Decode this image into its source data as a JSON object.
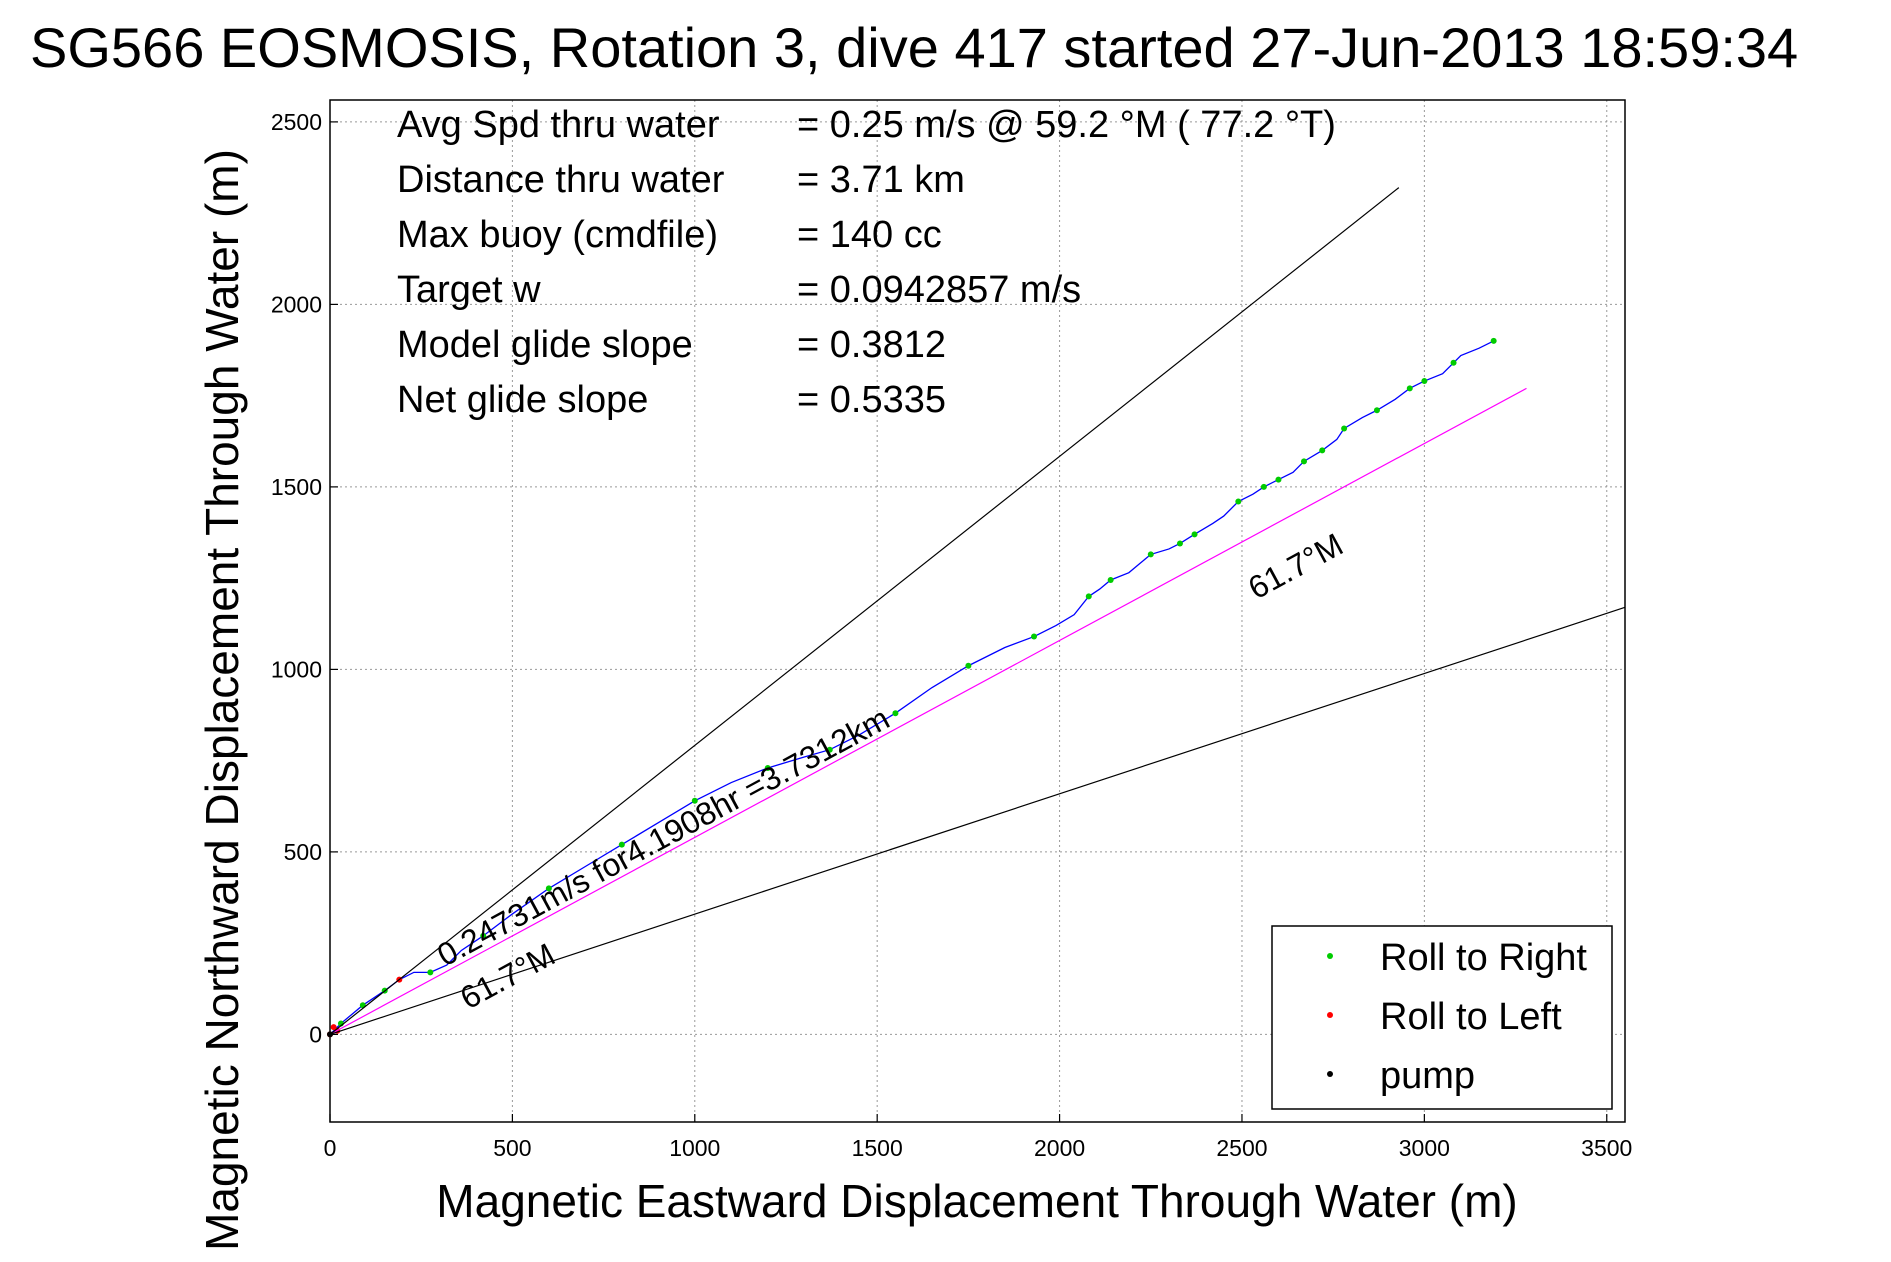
{
  "chart_data": {
    "type": "line",
    "title": "SG566 EOSMOSIS, Rotation 3, dive 417 started 27-Jun-2013 18:59:34",
    "xlabel": "Magnetic Eastward Displacement Through Water (m)",
    "ylabel": "Magnetic Northward Displacement Through Water (m)",
    "xlim": [
      0,
      3550
    ],
    "ylim": [
      -240,
      2560
    ],
    "xticks": [
      0,
      500,
      1000,
      1500,
      2000,
      2500,
      3000,
      3500
    ],
    "yticks": [
      0,
      500,
      1000,
      1500,
      2000,
      2500
    ],
    "grid": true,
    "legend_position": "bottom-right",
    "info_lines": [
      {
        "label": "Avg Spd thru water",
        "value": "=  0.25 m/s @  59.2 °M ( 77.2 °T)"
      },
      {
        "label": "Distance thru water",
        "value": "=  3.71 km"
      },
      {
        "label": "Max buoy (cmdfile)",
        "value": "= 140 cc"
      },
      {
        "label": "Target w",
        "value": "= 0.0942857 m/s"
      },
      {
        "label": "Model glide slope",
        "value": "= 0.3812"
      },
      {
        "label": "Net glide slope",
        "value": "= 0.5335"
      }
    ],
    "annotations": {
      "track_label": "0.24731m/s for4.1908hr =3.7312km",
      "heading_upper": "61.7°M",
      "heading_lower": "61.7°M"
    },
    "series": [
      {
        "name": "track",
        "color": "#0000ff",
        "x": [
          0,
          30,
          60,
          90,
          120,
          150,
          190,
          230,
          275,
          320,
          360,
          420,
          500,
          600,
          700,
          800,
          900,
          1000,
          1100,
          1200,
          1300,
          1370,
          1450,
          1550,
          1650,
          1750,
          1850,
          1930,
          1990,
          2040,
          2080,
          2110,
          2140,
          2190,
          2220,
          2250,
          2300,
          2330,
          2370,
          2420,
          2450,
          2490,
          2530,
          2560,
          2600,
          2640,
          2670,
          2720,
          2760,
          2780,
          2830,
          2870,
          2920,
          2960,
          3000,
          3050,
          3080,
          3100,
          3150,
          3190
        ],
        "y": [
          0,
          30,
          55,
          80,
          100,
          120,
          150,
          170,
          170,
          190,
          230,
          270,
          330,
          400,
          460,
          520,
          580,
          640,
          690,
          730,
          760,
          780,
          820,
          880,
          950,
          1010,
          1060,
          1090,
          1120,
          1150,
          1200,
          1220,
          1245,
          1265,
          1290,
          1315,
          1330,
          1345,
          1370,
          1400,
          1420,
          1460,
          1480,
          1500,
          1520,
          1540,
          1570,
          1600,
          1630,
          1660,
          1690,
          1710,
          1740,
          1770,
          1790,
          1810,
          1840,
          1860,
          1880,
          1900
        ]
      },
      {
        "name": "Roll to Right",
        "color": "#00cc00",
        "x": [
          30,
          90,
          150,
          275,
          420,
          600,
          800,
          1000,
          1200,
          1370,
          1550,
          1750,
          1930,
          2080,
          2140,
          2250,
          2330,
          2370,
          2490,
          2560,
          2600,
          2670,
          2720,
          2780,
          2870,
          2960,
          3000,
          3080,
          3190
        ],
        "y": [
          30,
          80,
          120,
          170,
          270,
          400,
          520,
          640,
          730,
          780,
          880,
          1010,
          1090,
          1200,
          1245,
          1315,
          1345,
          1370,
          1460,
          1500,
          1520,
          1570,
          1600,
          1660,
          1710,
          1770,
          1790,
          1840,
          1900
        ]
      },
      {
        "name": "Roll to Left",
        "color": "#ff0000",
        "x": [
          0,
          10,
          20,
          190
        ],
        "y": [
          0,
          20,
          10,
          150
        ]
      },
      {
        "name": "pump",
        "color": "#000000",
        "x": [
          0
        ],
        "y": [
          0
        ]
      },
      {
        "name": "",
        "color": "#ff00ff",
        "x": [
          0,
          3280
        ],
        "y": [
          0,
          1770
        ]
      },
      {
        "name": "",
        "color": "#000000",
        "x": [
          0,
          2930
        ],
        "y": [
          0,
          2320
        ]
      },
      {
        "name": "",
        "color": "#000000",
        "x": [
          0,
          3550
        ],
        "y": [
          0,
          1170
        ]
      }
    ]
  }
}
